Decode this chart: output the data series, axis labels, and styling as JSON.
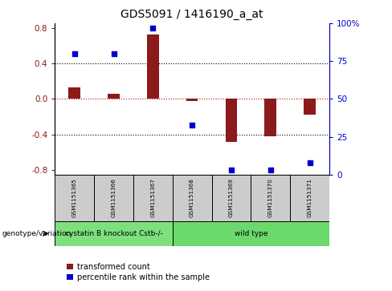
{
  "title": "GDS5091 / 1416190_a_at",
  "samples": [
    "GSM1151365",
    "GSM1151366",
    "GSM1151367",
    "GSM1151368",
    "GSM1151369",
    "GSM1151370",
    "GSM1151371"
  ],
  "transformed_count": [
    0.13,
    0.06,
    0.72,
    -0.02,
    -0.48,
    -0.42,
    -0.18
  ],
  "percentile_rank": [
    80,
    80,
    97,
    33,
    3,
    3,
    8
  ],
  "groups": [
    {
      "label": "cystatin B knockout Cstb-/-",
      "start": 0,
      "end": 3,
      "color": "#7de07d"
    },
    {
      "label": "wild type",
      "start": 3,
      "end": 7,
      "color": "#6cd96c"
    }
  ],
  "ylim": [
    -0.85,
    0.85
  ],
  "yticks_left": [
    -0.8,
    -0.4,
    0.0,
    0.4,
    0.8
  ],
  "yticks_right": [
    0,
    25,
    50,
    75,
    100
  ],
  "bar_color": "#8B1A1A",
  "dot_color": "#0000CC",
  "grid_color": "#000000",
  "zero_line_color": "#CC0000",
  "background_color": "#ffffff",
  "legend_red_label": "transformed count",
  "legend_blue_label": "percentile rank within the sample",
  "genotype_label": "genotype/variation",
  "bar_width": 0.3
}
